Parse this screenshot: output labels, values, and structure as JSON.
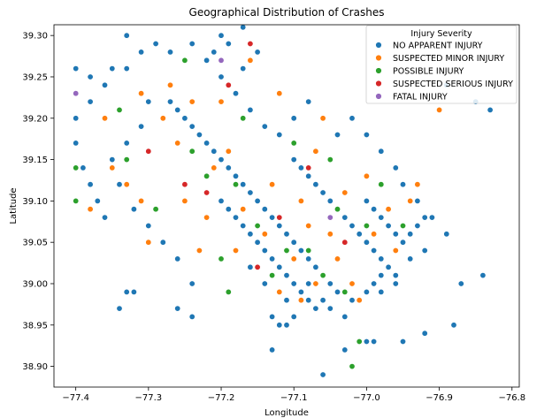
{
  "chart_data": {
    "type": "scatter",
    "title": "Geographical Distribution of Crashes",
    "xlabel": "Longitude",
    "ylabel": "Latitude",
    "xlim": [
      -77.43,
      -76.79
    ],
    "ylim": [
      38.875,
      39.313
    ],
    "x_ticks": [
      -77.4,
      -77.3,
      -77.2,
      -77.1,
      -77.0,
      -76.9,
      -76.8
    ],
    "x_tick_labels": [
      "−77.4",
      "−77.3",
      "−77.2",
      "−77.1",
      "−77.0",
      "−76.9",
      "−76.8"
    ],
    "y_ticks": [
      38.9,
      38.95,
      39.0,
      39.05,
      39.1,
      39.15,
      39.2,
      39.25,
      39.3
    ],
    "y_tick_labels": [
      "38.90",
      "38.95",
      "39.00",
      "39.05",
      "39.10",
      "39.15",
      "39.20",
      "39.25",
      "39.30"
    ],
    "grid": false,
    "legend": {
      "title": "Injury Severity",
      "placement": "top-right",
      "entries": [
        {
          "name": "NO APPARENT INJURY",
          "color": "#1f77b4"
        },
        {
          "name": "SUSPECTED MINOR INJURY",
          "color": "#ff7f0e"
        },
        {
          "name": "POSSIBLE INJURY",
          "color": "#2ca02c"
        },
        {
          "name": "SUSPECTED SERIOUS INJURY",
          "color": "#d62728"
        },
        {
          "name": "FATAL INJURY",
          "color": "#9467bd"
        }
      ]
    },
    "series": [
      {
        "name": "NO APPARENT INJURY",
        "color": "#1f77b4",
        "points": [
          [
            -77.27,
            39.22
          ],
          [
            -77.26,
            39.21
          ],
          [
            -77.25,
            39.2
          ],
          [
            -77.24,
            39.19
          ],
          [
            -77.23,
            39.18
          ],
          [
            -77.22,
            39.17
          ],
          [
            -77.21,
            39.16
          ],
          [
            -77.2,
            39.15
          ],
          [
            -77.19,
            39.14
          ],
          [
            -77.18,
            39.13
          ],
          [
            -77.17,
            39.12
          ],
          [
            -77.16,
            39.11
          ],
          [
            -77.15,
            39.1
          ],
          [
            -77.14,
            39.09
          ],
          [
            -77.13,
            39.08
          ],
          [
            -77.12,
            39.07
          ],
          [
            -77.11,
            39.06
          ],
          [
            -77.1,
            39.05
          ],
          [
            -77.09,
            39.04
          ],
          [
            -77.08,
            39.03
          ],
          [
            -77.07,
            39.02
          ],
          [
            -77.06,
            39.01
          ],
          [
            -77.05,
            39.0
          ],
          [
            -77.04,
            38.99
          ],
          [
            -77.2,
            39.1
          ],
          [
            -77.19,
            39.09
          ],
          [
            -77.18,
            39.08
          ],
          [
            -77.17,
            39.07
          ],
          [
            -77.16,
            39.06
          ],
          [
            -77.15,
            39.05
          ],
          [
            -77.14,
            39.04
          ],
          [
            -77.13,
            39.03
          ],
          [
            -77.12,
            39.02
          ],
          [
            -77.11,
            39.01
          ],
          [
            -77.1,
            39.0
          ],
          [
            -77.09,
            38.99
          ],
          [
            -77.08,
            38.98
          ],
          [
            -77.07,
            38.97
          ],
          [
            -77.1,
            39.15
          ],
          [
            -77.09,
            39.14
          ],
          [
            -77.08,
            39.13
          ],
          [
            -77.07,
            39.12
          ],
          [
            -77.06,
            39.11
          ],
          [
            -77.05,
            39.1
          ],
          [
            -77.04,
            39.09
          ],
          [
            -77.03,
            39.08
          ],
          [
            -77.02,
            39.07
          ],
          [
            -77.01,
            39.06
          ],
          [
            -77.0,
            39.05
          ],
          [
            -76.99,
            39.04
          ],
          [
            -76.98,
            39.03
          ],
          [
            -76.97,
            39.02
          ],
          [
            -76.96,
            39.01
          ],
          [
            -77.0,
            39.1
          ],
          [
            -76.99,
            39.09
          ],
          [
            -76.98,
            39.08
          ],
          [
            -76.97,
            39.07
          ],
          [
            -76.96,
            39.06
          ],
          [
            -76.95,
            39.05
          ],
          [
            -76.94,
            39.06
          ],
          [
            -76.93,
            39.07
          ],
          [
            -76.92,
            39.08
          ],
          [
            -76.93,
            39.1
          ],
          [
            -76.95,
            39.12
          ],
          [
            -77.4,
            39.2
          ],
          [
            -77.4,
            39.17
          ],
          [
            -77.39,
            39.14
          ],
          [
            -77.38,
            39.12
          ],
          [
            -77.37,
            39.1
          ],
          [
            -77.36,
            39.08
          ],
          [
            -77.38,
            39.22
          ],
          [
            -77.36,
            39.24
          ],
          [
            -77.33,
            39.26
          ],
          [
            -77.31,
            39.28
          ],
          [
            -77.3,
            39.22
          ],
          [
            -77.31,
            39.19
          ],
          [
            -77.33,
            39.17
          ],
          [
            -77.35,
            39.15
          ],
          [
            -77.34,
            39.12
          ],
          [
            -77.32,
            39.09
          ],
          [
            -77.3,
            39.07
          ],
          [
            -77.28,
            39.05
          ],
          [
            -77.26,
            39.03
          ],
          [
            -77.24,
            39.0
          ],
          [
            -77.22,
            39.27
          ],
          [
            -77.2,
            39.25
          ],
          [
            -77.18,
            39.23
          ],
          [
            -77.16,
            39.21
          ],
          [
            -77.14,
            39.19
          ],
          [
            -77.12,
            39.18
          ],
          [
            -77.1,
            39.2
          ],
          [
            -77.08,
            39.22
          ],
          [
            -77.06,
            39.2
          ],
          [
            -77.04,
            39.18
          ],
          [
            -77.02,
            39.2
          ],
          [
            -77.0,
            39.18
          ],
          [
            -76.98,
            39.16
          ],
          [
            -76.96,
            39.14
          ],
          [
            -77.15,
            39.28
          ],
          [
            -77.17,
            39.26
          ],
          [
            -77.19,
            39.29
          ],
          [
            -77.21,
            39.28
          ],
          [
            -77.24,
            39.29
          ],
          [
            -77.27,
            39.28
          ],
          [
            -77.08,
            39.0
          ],
          [
            -77.06,
            38.98
          ],
          [
            -77.05,
            38.97
          ],
          [
            -77.03,
            38.96
          ],
          [
            -77.02,
            38.98
          ],
          [
            -77.0,
            38.99
          ],
          [
            -76.99,
            39.0
          ],
          [
            -76.98,
            39.01
          ],
          [
            -76.97,
            39.02
          ],
          [
            -76.96,
            39.0
          ],
          [
            -76.94,
            39.03
          ],
          [
            -76.92,
            39.04
          ],
          [
            -77.13,
            38.96
          ],
          [
            -77.12,
            38.95
          ],
          [
            -77.11,
            38.95
          ],
          [
            -77.1,
            38.96
          ],
          [
            -77.11,
            38.98
          ],
          [
            -77.14,
            39.0
          ],
          [
            -77.16,
            39.02
          ],
          [
            -77.18,
            39.04
          ],
          [
            -77.34,
            38.97
          ],
          [
            -77.33,
            38.99
          ],
          [
            -77.32,
            38.99
          ],
          [
            -77.26,
            38.97
          ],
          [
            -77.24,
            38.96
          ],
          [
            -77.13,
            38.92
          ],
          [
            -77.06,
            38.89
          ],
          [
            -77.0,
            38.93
          ],
          [
            -76.95,
            38.93
          ],
          [
            -76.92,
            38.94
          ],
          [
            -76.88,
            38.95
          ],
          [
            -76.87,
            39.0
          ],
          [
            -76.84,
            39.01
          ],
          [
            -76.89,
            39.06
          ],
          [
            -76.91,
            39.08
          ],
          [
            -76.89,
            39.24
          ],
          [
            -76.85,
            39.22
          ],
          [
            -76.83,
            39.21
          ],
          [
            -77.35,
            39.26
          ],
          [
            -77.33,
            39.3
          ],
          [
            -77.29,
            39.29
          ],
          [
            -77.38,
            39.25
          ],
          [
            -77.4,
            39.26
          ],
          [
            -77.2,
            39.3
          ],
          [
            -77.17,
            39.31
          ],
          [
            -76.99,
            38.93
          ],
          [
            -77.01,
            38.93
          ],
          [
            -77.03,
            38.92
          ],
          [
            -76.98,
            38.99
          ]
        ]
      },
      {
        "name": "SUSPECTED MINOR INJURY",
        "color": "#ff7f0e",
        "points": [
          [
            -77.26,
            39.17
          ],
          [
            -77.21,
            39.14
          ],
          [
            -77.17,
            39.09
          ],
          [
            -77.14,
            39.06
          ],
          [
            -77.1,
            39.03
          ],
          [
            -77.07,
            39.0
          ],
          [
            -77.05,
            39.06
          ],
          [
            -77.03,
            39.11
          ],
          [
            -77.0,
            39.13
          ],
          [
            -76.97,
            39.09
          ],
          [
            -76.94,
            39.1
          ],
          [
            -76.93,
            39.12
          ],
          [
            -77.33,
            39.12
          ],
          [
            -77.38,
            39.09
          ],
          [
            -77.31,
            39.23
          ],
          [
            -77.28,
            39.2
          ],
          [
            -77.2,
            39.22
          ],
          [
            -77.16,
            39.27
          ],
          [
            -77.12,
            39.23
          ],
          [
            -77.07,
            39.16
          ],
          [
            -77.04,
            39.03
          ],
          [
            -77.02,
            39.0
          ],
          [
            -76.99,
            39.06
          ],
          [
            -77.12,
            38.99
          ],
          [
            -77.09,
            38.98
          ],
          [
            -77.23,
            39.04
          ],
          [
            -77.36,
            39.2
          ],
          [
            -77.3,
            39.05
          ],
          [
            -77.22,
            39.08
          ],
          [
            -77.09,
            39.1
          ],
          [
            -76.96,
            39.04
          ],
          [
            -77.01,
            38.98
          ],
          [
            -77.19,
            39.16
          ],
          [
            -77.27,
            39.24
          ],
          [
            -77.06,
            39.2
          ],
          [
            -76.9,
            39.21
          ],
          [
            -77.24,
            39.22
          ],
          [
            -77.18,
            39.04
          ],
          [
            -77.13,
            39.12
          ],
          [
            -77.08,
            39.07
          ],
          [
            -77.25,
            39.1
          ],
          [
            -77.35,
            39.14
          ],
          [
            -77.31,
            39.1
          ]
        ]
      },
      {
        "name": "POSSIBLE INJURY",
        "color": "#2ca02c",
        "points": [
          [
            -77.24,
            39.16
          ],
          [
            -77.18,
            39.12
          ],
          [
            -77.15,
            39.07
          ],
          [
            -77.11,
            39.04
          ],
          [
            -77.06,
            39.01
          ],
          [
            -77.04,
            39.09
          ],
          [
            -77.0,
            39.07
          ],
          [
            -76.98,
            39.12
          ],
          [
            -77.29,
            39.09
          ],
          [
            -77.34,
            39.21
          ],
          [
            -77.17,
            39.2
          ],
          [
            -77.1,
            39.17
          ],
          [
            -77.05,
            39.15
          ],
          [
            -77.2,
            39.03
          ],
          [
            -77.25,
            39.27
          ],
          [
            -77.33,
            39.15
          ],
          [
            -77.13,
            39.01
          ],
          [
            -77.03,
            38.99
          ],
          [
            -77.4,
            39.1
          ],
          [
            -77.4,
            39.14
          ],
          [
            -77.02,
            38.9
          ],
          [
            -77.01,
            38.93
          ],
          [
            -77.22,
            39.13
          ],
          [
            -77.08,
            39.04
          ],
          [
            -76.95,
            39.07
          ],
          [
            -77.19,
            38.99
          ]
        ]
      },
      {
        "name": "SUSPECTED SERIOUS INJURY",
        "color": "#d62728",
        "points": [
          [
            -77.22,
            39.11
          ],
          [
            -77.19,
            39.24
          ],
          [
            -77.12,
            39.08
          ],
          [
            -77.08,
            39.14
          ],
          [
            -77.16,
            39.29
          ],
          [
            -77.25,
            39.12
          ],
          [
            -77.03,
            39.05
          ],
          [
            -77.3,
            39.16
          ],
          [
            -77.15,
            39.02
          ]
        ]
      },
      {
        "name": "FATAL INJURY",
        "color": "#9467bd",
        "points": [
          [
            -77.4,
            39.23
          ],
          [
            -77.2,
            39.27
          ],
          [
            -77.05,
            39.08
          ]
        ]
      }
    ]
  }
}
